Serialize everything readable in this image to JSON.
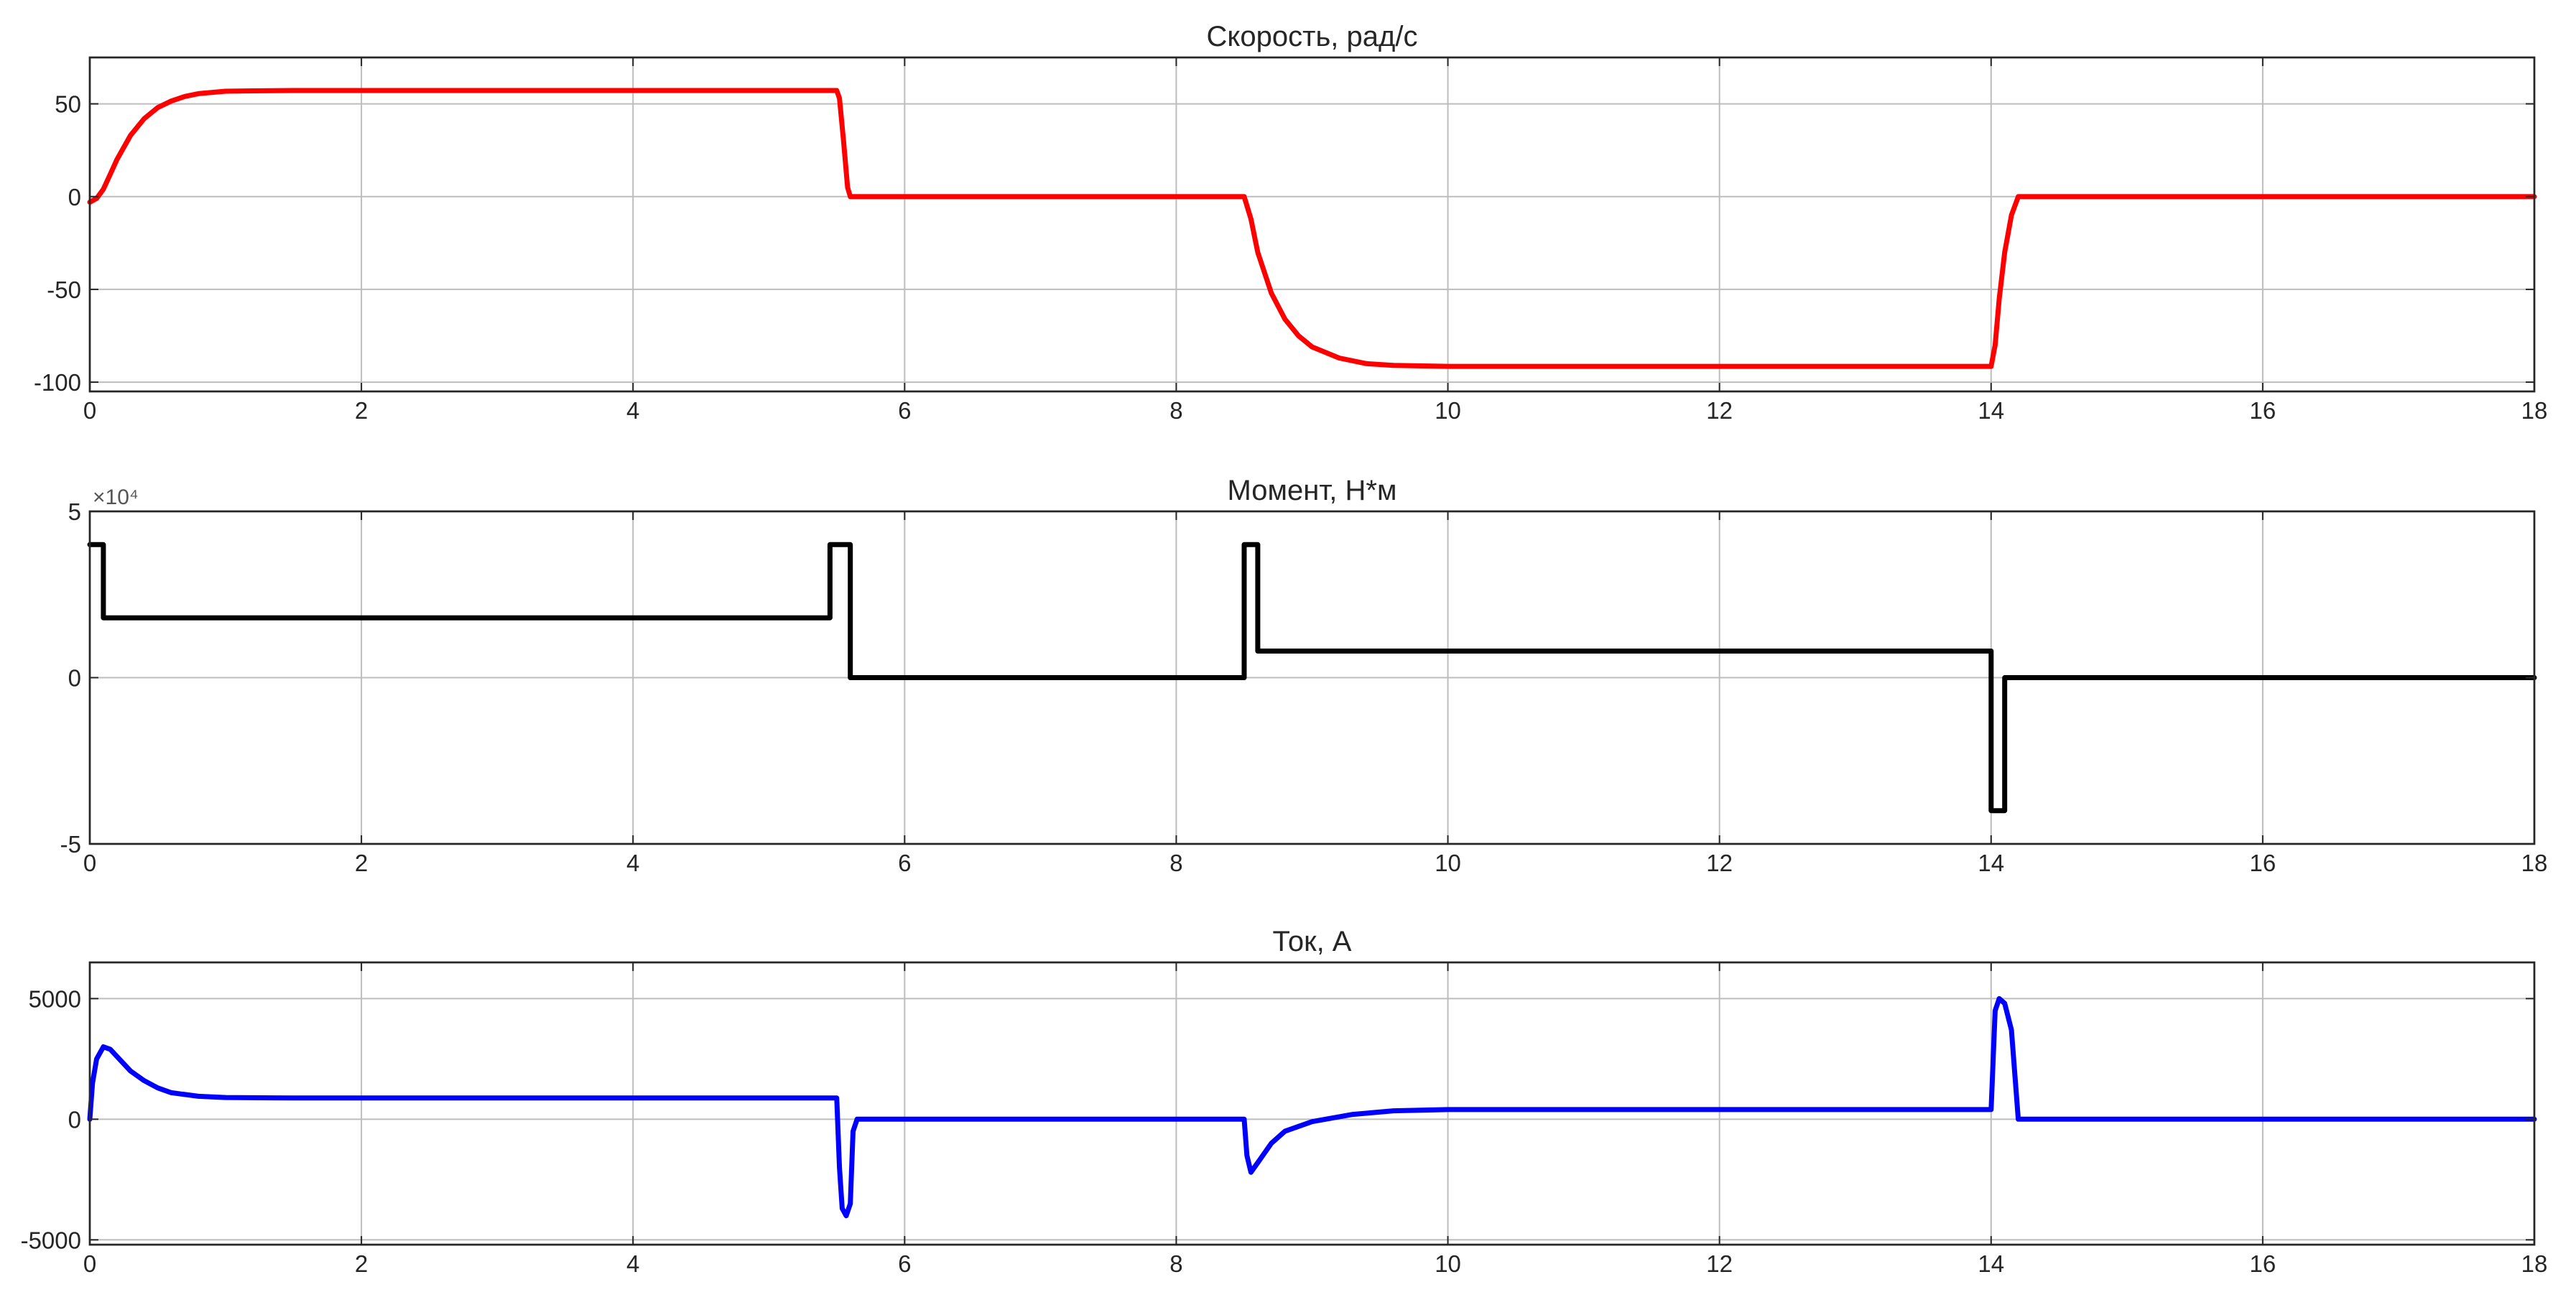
{
  "chart_data": [
    {
      "type": "line",
      "title": "Скорость, рад/с",
      "xlim": [
        0,
        18
      ],
      "ylim": [
        -105,
        75
      ],
      "xticks": [
        0,
        2,
        4,
        6,
        8,
        10,
        12,
        14,
        16,
        18
      ],
      "yticks": [
        -100,
        -50,
        0,
        50
      ],
      "ytick_labels": [
        "-100",
        "-50",
        "0",
        "50"
      ],
      "exponent_label": "",
      "grid": true,
      "color": "#ff0000",
      "series": [
        {
          "x": [
            0,
            0.05,
            0.1,
            0.15,
            0.2,
            0.3,
            0.4,
            0.5,
            0.6,
            0.7,
            0.8,
            1.0,
            1.2,
            1.5,
            2.0,
            5.5,
            5.52,
            5.55,
            5.58,
            5.6,
            6.0,
            8.5,
            8.55,
            8.6,
            8.7,
            8.8,
            8.9,
            9.0,
            9.2,
            9.4,
            9.6,
            10.0,
            14.0,
            14.03,
            14.06,
            14.1,
            14.15,
            14.2,
            18.0
          ],
          "y": [
            -3,
            -1,
            4,
            12,
            20,
            33,
            42,
            48,
            51.5,
            54,
            55.5,
            56.8,
            57,
            57.2,
            57.2,
            57.2,
            53,
            30,
            5,
            0,
            0,
            0,
            -12,
            -30,
            -52,
            -66,
            -75,
            -81,
            -87,
            -90,
            -91,
            -91.5,
            -91.5,
            -80,
            -55,
            -30,
            -10,
            0,
            0
          ]
        }
      ]
    },
    {
      "type": "line",
      "title": "Момент, Н*м",
      "xlim": [
        0,
        18
      ],
      "ylim": [
        -5,
        5
      ],
      "xticks": [
        0,
        2,
        4,
        6,
        8,
        10,
        12,
        14,
        16,
        18
      ],
      "yticks": [
        -5,
        0,
        5
      ],
      "ytick_labels": [
        "-5",
        "0",
        "5"
      ],
      "exponent_label": "×10⁴",
      "grid": true,
      "color": "#000000",
      "series": [
        {
          "x": [
            0,
            0.1,
            0.1,
            5.45,
            5.45,
            5.55,
            5.55,
            5.6,
            5.6,
            8.5,
            8.5,
            8.6,
            8.6,
            14.0,
            14.0,
            14.1,
            14.1,
            18.0
          ],
          "y": [
            4,
            4,
            1.8,
            1.8,
            4,
            4,
            4,
            4,
            0,
            0,
            4,
            4,
            0.8,
            0.8,
            -4,
            -4,
            0,
            0
          ]
        }
      ]
    },
    {
      "type": "line",
      "title": "Ток, А",
      "xlim": [
        0,
        18
      ],
      "ylim": [
        -5200,
        6500
      ],
      "xticks": [
        0,
        2,
        4,
        6,
        8,
        10,
        12,
        14,
        16,
        18
      ],
      "yticks": [
        -5000,
        0,
        5000
      ],
      "ytick_labels": [
        "-5000",
        "0",
        "5000"
      ],
      "exponent_label": "",
      "grid": true,
      "color": "#0000ff",
      "series": [
        {
          "x": [
            0,
            0.02,
            0.05,
            0.1,
            0.15,
            0.2,
            0.3,
            0.4,
            0.5,
            0.6,
            0.8,
            1.0,
            1.5,
            2.0,
            5.5,
            5.52,
            5.54,
            5.57,
            5.6,
            5.62,
            5.65,
            8.5,
            8.52,
            8.55,
            8.6,
            8.7,
            8.8,
            9.0,
            9.3,
            9.6,
            10.0,
            14.0,
            14.03,
            14.06,
            14.1,
            14.15,
            14.2,
            18.0
          ],
          "y": [
            0,
            1500,
            2500,
            3000,
            2900,
            2600,
            2000,
            1600,
            1300,
            1100,
            950,
            900,
            880,
            880,
            880,
            -2000,
            -3700,
            -4000,
            -3500,
            -500,
            0,
            0,
            -1500,
            -2200,
            -1800,
            -1000,
            -500,
            -100,
            200,
            350,
            400,
            400,
            4500,
            5000,
            4800,
            3700,
            0,
            0
          ]
        }
      ]
    }
  ]
}
